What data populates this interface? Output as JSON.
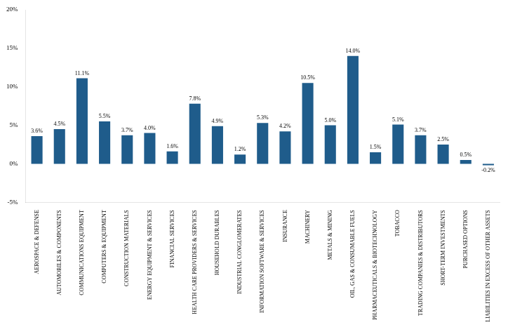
{
  "chart_data": {
    "type": "bar",
    "categories": [
      "AEROSPACE & DEFENSE",
      "AUTOMOBILES & COMPONENTS",
      "COMMUNICATIONS EQUIPMENT",
      "COMPUTERS & EQUIPMENT",
      "CONSTRUCTION MATERIALS",
      "ENERGY EQUIPMENT & SERVICES",
      "FINANCIAL SERVICES",
      "HEALTH CARE PROVIDERS & SERVICES",
      "HOUSEHOLD DURABLES",
      "INDUSTRIAL CONGLOMERATES",
      "INFORMATION SOFTWARE & SERVICES",
      "INSURANCE",
      "MACHINERY",
      "METALS & MINING",
      "OIL, GAS & CONSUMABLE FUELS",
      "PHARMACEUTICALS & BIOTECHNOLOGY",
      "TOBACCO",
      "TRADING COMPANIES & DISTRIBUTORS",
      "SHORT-TERM INVESTMENTS",
      "PURCHASED OPTIONS",
      "LIABILITIES IN EXCESS OF OTHER ASSETS"
    ],
    "values": [
      3.6,
      4.5,
      11.1,
      5.5,
      3.7,
      4.0,
      1.6,
      7.8,
      4.9,
      1.2,
      5.3,
      4.2,
      10.5,
      5.0,
      14.0,
      1.5,
      5.1,
      3.7,
      2.5,
      0.5,
      -0.2
    ],
    "value_labels": [
      "3.6%",
      "4.5%",
      "11.1%",
      "5.5%",
      "3.7%",
      "4.0%",
      "1.6%",
      "7.8%",
      "4.9%",
      "1.2%",
      "5.3%",
      "4.2%",
      "10.5%",
      "5.0%",
      "14.0%",
      "1.5%",
      "5.1%",
      "3.7%",
      "2.5%",
      "0.5%",
      "-0.2%"
    ],
    "color": "#1F5C8B",
    "ylim": [
      -5,
      20
    ],
    "yticks": [
      {
        "value": -5,
        "label": "-5%"
      },
      {
        "value": 0,
        "label": "0%"
      },
      {
        "value": 5,
        "label": "5%"
      },
      {
        "value": 10,
        "label": "10%"
      },
      {
        "value": 15,
        "label": "15%"
      },
      {
        "value": 20,
        "label": "20%"
      }
    ],
    "grid": false,
    "data_labels": true
  }
}
